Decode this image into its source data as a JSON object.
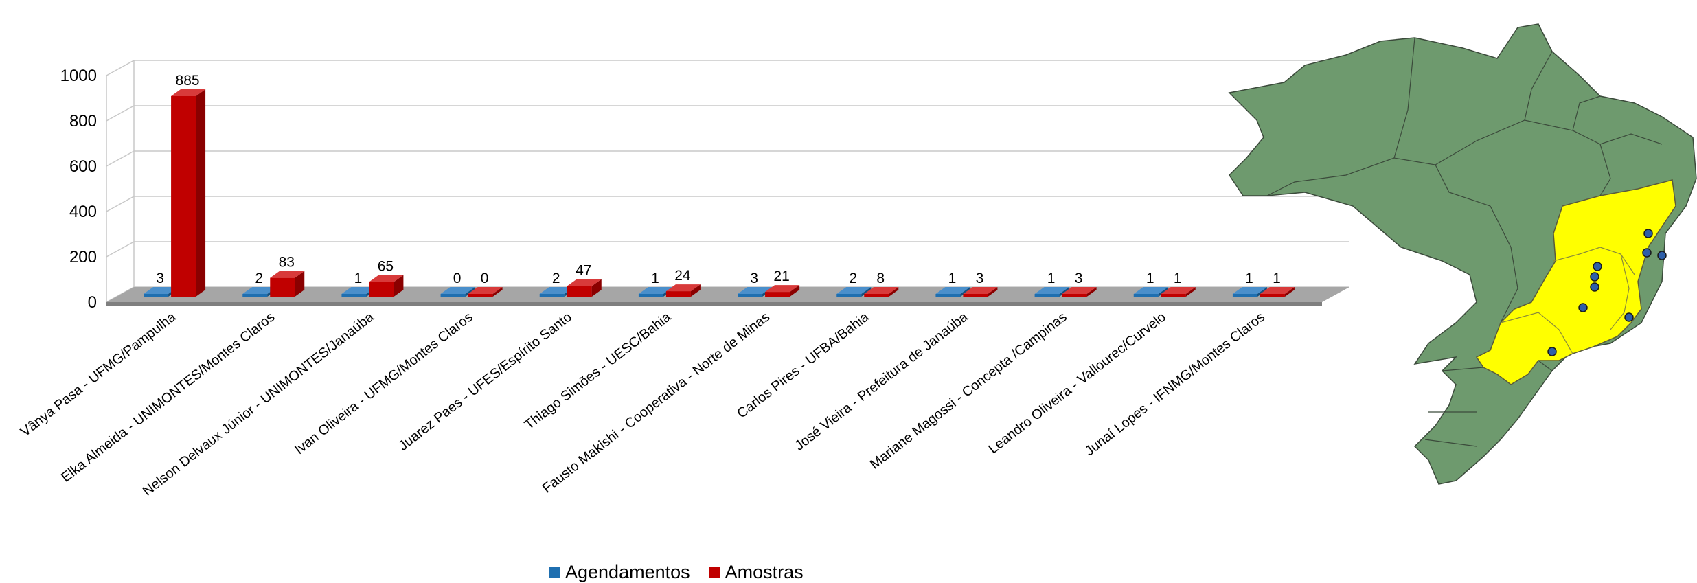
{
  "chart_data": {
    "type": "bar",
    "style": "3d-clustered-column",
    "categories": [
      "Vânya Pasa - UFMG/Pampulha",
      "Elka Almeida - UNIMONTES/Montes Claros",
      "Nelson Delvaux Júnior - UNIMONTES/Janaúba",
      "Ivan Oliveira - UFMG/Montes Claros",
      "Juarez Paes - UFES/Espírito Santo",
      "Thiago Simões - UESC/Bahia",
      "Fausto Makishi - Cooperativa - Norte de Minas",
      "Carlos  Pires - UFBA/Bahia",
      "José Vieira - Prefeitura de Janaúba",
      "Mariane Magossi - Concepta /Campinas",
      "Leandro Oliveira - Vallourec/Curvelo",
      "Junaí Lopes - IFNMG/Montes Claros"
    ],
    "series": [
      {
        "name": "Agendamentos",
        "color": "#1f6fb0",
        "values": [
          3,
          2,
          1,
          0,
          2,
          1,
          3,
          2,
          1,
          1,
          1,
          1
        ]
      },
      {
        "name": "Amostras",
        "color": "#c00000",
        "values": [
          885,
          83,
          65,
          0,
          47,
          24,
          21,
          8,
          3,
          3,
          1,
          1
        ]
      }
    ],
    "yticks": [
      "0",
      "200",
      "400",
      "600",
      "800",
      "1000"
    ],
    "ylim": [
      0,
      1000
    ],
    "grid": true,
    "legend_position": "bottom",
    "title": "",
    "xlabel": "",
    "ylabel": ""
  },
  "map": {
    "subject": "Brazil states map",
    "base_color": "#6e9a6e",
    "highlight_color": "#ffff00",
    "marker_color": "#2e5fa8",
    "marker_count": 9
  }
}
